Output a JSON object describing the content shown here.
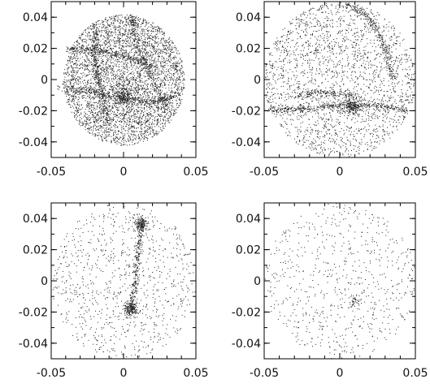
{
  "chart_data": [
    {
      "type": "scatter",
      "title": "",
      "xlabel": "",
      "ylabel": "",
      "xlim": [
        -0.05,
        0.05
      ],
      "ylim": [
        -0.05,
        0.05
      ],
      "x_ticks": [
        "-0.05",
        "0",
        "0.05"
      ],
      "y_ticks": [
        "0.04",
        "0.02",
        "0",
        "-0.02",
        "-0.04"
      ],
      "x_tick_values": [
        -0.05,
        0,
        0.05
      ],
      "y_tick_values": [
        0.04,
        0.02,
        0,
        -0.02,
        -0.04
      ],
      "grid": false,
      "point_color": "#222222",
      "points_description": "dense particle distribution filling a disc of radius ~0.04 with web-like filaments; dense knot near (0.0,-0.01)",
      "features": {
        "disc": {
          "cx": 0.0,
          "cy": 0.0,
          "r": 0.042,
          "count": 4200
        },
        "filaments": [
          [
            [
              -0.045,
              -0.005
            ],
            [
              -0.02,
              -0.008
            ],
            [
              0.0,
              -0.012
            ],
            [
              0.02,
              -0.015
            ],
            [
              0.035,
              -0.01
            ]
          ],
          [
            [
              -0.02,
              0.035
            ],
            [
              -0.02,
              0.01
            ],
            [
              -0.015,
              -0.01
            ],
            [
              -0.01,
              -0.03
            ]
          ],
          [
            [
              0.005,
              0.04
            ],
            [
              0.01,
              0.02
            ],
            [
              0.02,
              0.0
            ],
            [
              0.03,
              -0.02
            ]
          ],
          [
            [
              -0.04,
              0.02
            ],
            [
              -0.02,
              0.02
            ],
            [
              0.0,
              0.015
            ],
            [
              0.02,
              0.01
            ]
          ]
        ],
        "clumps": [
          {
            "x": 0.0,
            "y": -0.01,
            "sigma": 0.004,
            "count": 220
          }
        ]
      }
    },
    {
      "type": "scatter",
      "title": "",
      "xlabel": "",
      "ylabel": "",
      "xlim": [
        -0.05,
        0.05
      ],
      "ylim": [
        -0.05,
        0.05
      ],
      "x_ticks": [
        "-0.05",
        "0",
        "0.05"
      ],
      "y_ticks": [
        "0.04",
        "0.02",
        "0",
        "-0.02",
        "-0.04"
      ],
      "x_tick_values": [
        -0.05,
        0,
        0.05
      ],
      "y_tick_values": [
        0.04,
        0.02,
        0,
        -0.02,
        -0.04
      ],
      "grid": false,
      "point_color": "#222222",
      "points_description": "moderately dense field with a horizontal filament near y=-0.018 and an arc through upper right; dense clump near (0.008,-0.017)",
      "features": {
        "disc": {
          "cx": 0.0,
          "cy": 0.0,
          "r": 0.05,
          "count": 2200
        },
        "filaments": [
          [
            [
              -0.048,
              -0.02
            ],
            [
              -0.03,
              -0.019
            ],
            [
              -0.01,
              -0.017
            ],
            [
              0.005,
              -0.017
            ],
            [
              0.025,
              -0.016
            ],
            [
              0.045,
              -0.02
            ]
          ],
          [
            [
              -0.03,
              -0.01
            ],
            [
              -0.01,
              -0.008
            ],
            [
              0.01,
              -0.01
            ]
          ],
          [
            [
              0.005,
              0.048
            ],
            [
              0.02,
              0.04
            ],
            [
              0.03,
              0.02
            ],
            [
              0.035,
              0.0
            ]
          ]
        ],
        "clumps": [
          {
            "x": 0.008,
            "y": -0.017,
            "sigma": 0.003,
            "count": 180
          }
        ]
      }
    },
    {
      "type": "scatter",
      "title": "",
      "xlabel": "",
      "ylabel": "",
      "xlim": [
        -0.05,
        0.05
      ],
      "ylim": [
        -0.05,
        0.05
      ],
      "x_ticks": [
        "-0.05",
        "0",
        "0.05"
      ],
      "y_ticks": [
        "0.04",
        "0.02",
        "0",
        "-0.02",
        "-0.04"
      ],
      "x_tick_values": [
        -0.05,
        0,
        0.05
      ],
      "y_tick_values": [
        0.04,
        0.02,
        0,
        -0.02,
        -0.04
      ],
      "grid": false,
      "point_color": "#222222",
      "points_description": "sparse field with two compact clumps at (0.012,0.037) and (0.005,-0.018) connected by a faint vertical filament",
      "features": {
        "disc": {
          "cx": 0.0,
          "cy": 0.0,
          "r": 0.05,
          "count": 900
        },
        "filaments": [
          [
            [
              0.012,
              0.037
            ],
            [
              0.01,
              0.02
            ],
            [
              0.008,
              0.0
            ],
            [
              0.005,
              -0.018
            ]
          ]
        ],
        "clumps": [
          {
            "x": 0.012,
            "y": 0.037,
            "sigma": 0.0025,
            "count": 160
          },
          {
            "x": 0.005,
            "y": -0.018,
            "sigma": 0.0025,
            "count": 200
          }
        ]
      }
    },
    {
      "type": "scatter",
      "title": "",
      "xlabel": "",
      "ylabel": "",
      "xlim": [
        -0.05,
        0.05
      ],
      "ylim": [
        -0.05,
        0.05
      ],
      "x_ticks": [
        "-0.05",
        "0",
        "0.05"
      ],
      "y_ticks": [
        "0.04",
        "0.02",
        "0",
        "-0.02",
        "-0.04"
      ],
      "x_tick_values": [
        -0.05,
        0,
        0.05
      ],
      "y_tick_values": [
        0.04,
        0.02,
        0,
        -0.02,
        -0.04
      ],
      "grid": false,
      "point_color": "#222222",
      "points_description": "very sparse uniform field with one small clump near (0.01,-0.013)",
      "features": {
        "disc": {
          "cx": 0.0,
          "cy": 0.0,
          "r": 0.05,
          "count": 700
        },
        "filaments": [],
        "clumps": [
          {
            "x": 0.01,
            "y": -0.013,
            "sigma": 0.002,
            "count": 40
          }
        ]
      }
    }
  ]
}
